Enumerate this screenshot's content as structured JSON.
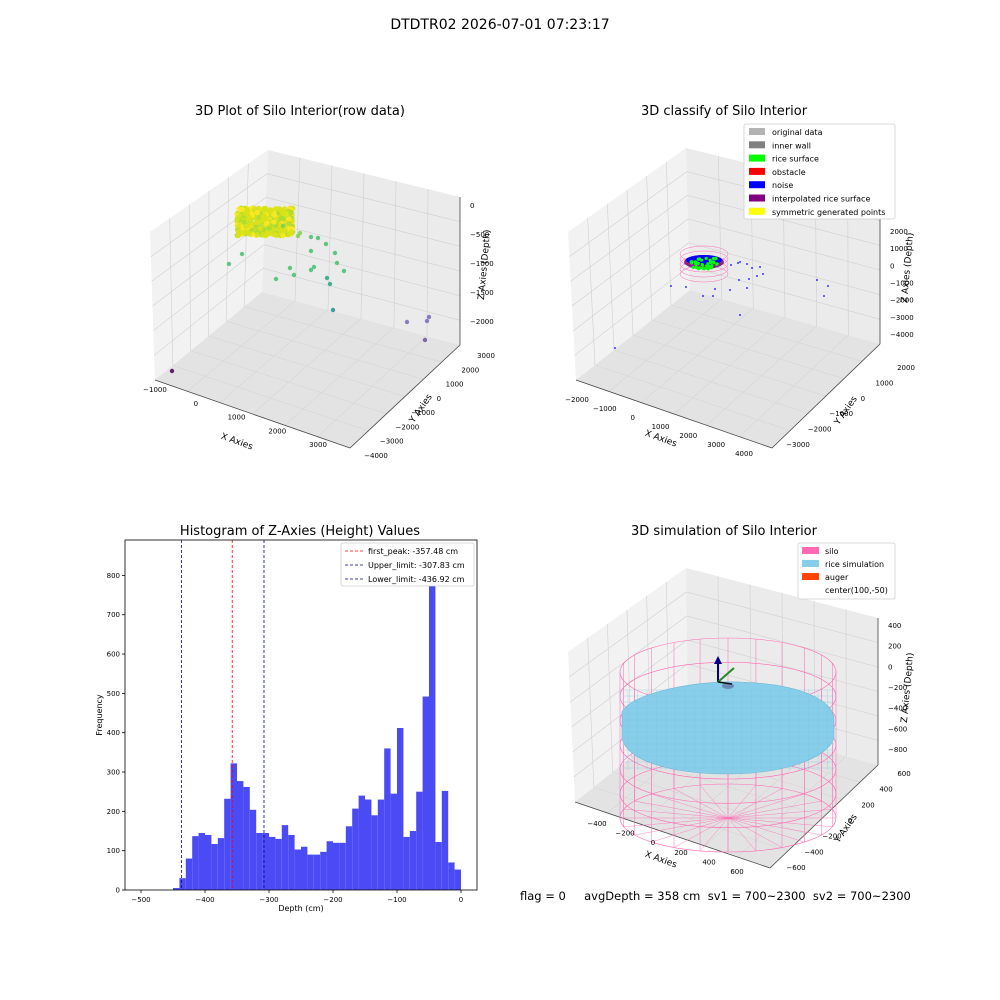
{
  "suptitle": "DTDTR02 2026-07-01 07:23:17",
  "status_line": "flag = 0     avgDepth = 358 cm  sv1 = 700~2300  sv2 = 700~2300",
  "colors": {
    "hist_bar": "#4b4bf5",
    "first_peak": "#ff0000",
    "limits": "#00008b",
    "silo": "#ff69b4",
    "rice_sim": "#87ceeb",
    "auger": "#ff4500",
    "pane": "#f2f2f2"
  },
  "chart_data": [
    {
      "type": "scatter",
      "projection": "3d",
      "title": "3D Plot of Silo Interior(row data)",
      "xlabel": "X Axies",
      "ylabel": "Y Axies",
      "zlabel": "Z Axies (Depth)",
      "x_ticks": [
        "−1000",
        "0",
        "1000",
        "2000",
        "3000"
      ],
      "y_ticks": [
        "−4000",
        "−3000",
        "−2000",
        "−1000",
        "0",
        "1000",
        "2000",
        "3000"
      ],
      "z_ticks": [
        "0",
        "−500",
        "−1000",
        "−1500",
        "−2000"
      ],
      "colormap": "viridis (by depth)",
      "grid": true
    },
    {
      "type": "scatter",
      "projection": "3d",
      "title": "3D classify of Silo Interior",
      "xlabel": "X Axies",
      "ylabel": "Y Axies",
      "zlabel": "Z Axies (Depth)",
      "x_ticks": [
        "−2000",
        "−1000",
        "0",
        "1000",
        "2000",
        "3000",
        "4000"
      ],
      "y_ticks": [
        "−3000",
        "−2000",
        "−1000",
        "0",
        "1000",
        "2000"
      ],
      "z_ticks": [
        "2000",
        "1000",
        "0",
        "−1000",
        "−2000",
        "−3000",
        "−4000"
      ],
      "legend": [
        {
          "label": "original data",
          "color": "#b3b3b3"
        },
        {
          "label": "inner wall",
          "color": "#808080"
        },
        {
          "label": "rice surface",
          "color": "#00ff00"
        },
        {
          "label": "obstacle",
          "color": "#ff0000"
        },
        {
          "label": "noise",
          "color": "#0000ff"
        },
        {
          "label": "interpolated rice surface",
          "color": "#800080"
        },
        {
          "label": "symmetric generated points",
          "color": "#ffff00"
        }
      ],
      "legend_loc": "upper right",
      "grid": true
    },
    {
      "type": "bar",
      "title": "Histogram of Z-Axies (Height) Values",
      "xlabel": "Depth (cm)",
      "ylabel": "Frequency",
      "xlim": [
        -525,
        25
      ],
      "ylim": [
        0,
        890
      ],
      "x_ticks": [
        -500,
        -400,
        -300,
        -200,
        -100,
        0
      ],
      "y_ticks": [
        0,
        100,
        200,
        300,
        400,
        500,
        600,
        700,
        800
      ],
      "bin_start": -500,
      "bin_width": 10,
      "values": [
        0,
        0,
        0,
        0,
        0,
        5,
        30,
        80,
        137,
        145,
        140,
        117,
        132,
        232,
        322,
        277,
        262,
        204,
        145,
        145,
        135,
        130,
        165,
        140,
        103,
        110,
        90,
        90,
        97,
        124,
        120,
        120,
        162,
        207,
        240,
        230,
        190,
        230,
        360,
        245,
        412,
        135,
        150,
        250,
        492,
        838,
        122,
        252,
        70,
        52
      ],
      "vlines": [
        {
          "label": "first_peak: -357.48 cm",
          "x": -357.48,
          "color": "#ff0000"
        },
        {
          "label": "Upper_limit: -307.83 cm",
          "x": -307.83,
          "color": "#00008b"
        },
        {
          "label": "Lower_limit: -436.92 cm",
          "x": -436.92,
          "color": "#00008b"
        }
      ],
      "legend_loc": "upper right"
    },
    {
      "type": "surface",
      "projection": "3d",
      "title": "3D simulation of Silo Interior",
      "xlabel": "X Axies",
      "ylabel": "Y Axies",
      "zlabel": "Z Axies (Depth)",
      "x_ticks": [
        "−400",
        "−200",
        "0",
        "200",
        "400",
        "600"
      ],
      "y_ticks": [
        "−600",
        "−400",
        "−200",
        "0",
        "200",
        "400",
        "600"
      ],
      "z_ticks": [
        "400",
        "200",
        "0",
        "−200",
        "−400",
        "−600",
        "−800"
      ],
      "legend": [
        {
          "label": "silo",
          "color": "#ff69b4"
        },
        {
          "label": "rice simulation",
          "color": "#87ceeb"
        },
        {
          "label": "auger",
          "color": "#ff4500"
        },
        {
          "label": "center(100,-50)",
          "color": ""
        }
      ],
      "legend_loc": "upper right",
      "grid": true
    }
  ]
}
